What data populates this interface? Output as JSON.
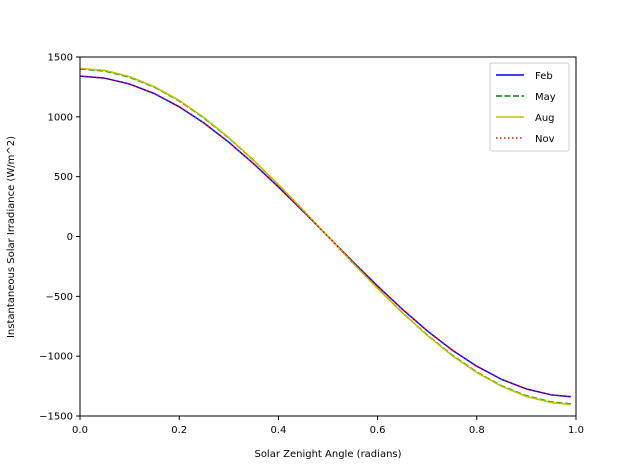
{
  "chart_data": {
    "type": "line",
    "title": "",
    "xlabel": "Solar Zenight Angle (radians)",
    "ylabel": "Instantaneous Solar Irradiance (W/m^2)",
    "xlim": [
      0.0,
      1.0
    ],
    "ylim": [
      -1500,
      1500
    ],
    "xticks": [
      0.0,
      0.2,
      0.4,
      0.6,
      0.8,
      1.0
    ],
    "xtick_labels": [
      "0.0",
      "0.2",
      "0.4",
      "0.6",
      "0.8",
      "1.0"
    ],
    "yticks": [
      -1500,
      -1000,
      -500,
      0,
      500,
      1000,
      1500
    ],
    "ytick_labels": [
      "−1500",
      "−1000",
      "−500",
      "0",
      "500",
      "1000",
      "1500"
    ],
    "grid": false,
    "legend_position": "top-right",
    "x": [
      0.0,
      0.05,
      0.1,
      0.15,
      0.2,
      0.25,
      0.3,
      0.35,
      0.4,
      0.45,
      0.5,
      0.55,
      0.6,
      0.65,
      0.7,
      0.75,
      0.8,
      0.85,
      0.9,
      0.95,
      0.99
    ],
    "series": [
      {
        "name": "Feb",
        "color": "#0000ff",
        "style": "solid",
        "values": [
          1340,
          1323,
          1274,
          1194,
          1084,
          948,
          788,
          608,
          414,
          210,
          0,
          -210,
          -414,
          -608,
          -788,
          -948,
          -1084,
          -1194,
          -1274,
          -1323,
          -1339
        ]
      },
      {
        "name": "May",
        "color": "#008000",
        "style": "dashed",
        "values": [
          1400,
          1383,
          1331,
          1248,
          1133,
          990,
          823,
          636,
          433,
          219,
          0,
          -219,
          -433,
          -636,
          -823,
          -990,
          -1133,
          -1248,
          -1331,
          -1383,
          -1399
        ]
      },
      {
        "name": "Aug",
        "color": "#bfbf00",
        "style": "solid",
        "values": [
          1405,
          1388,
          1336,
          1252,
          1137,
          994,
          826,
          638,
          434,
          220,
          0,
          -220,
          -434,
          -638,
          -826,
          -994,
          -1137,
          -1252,
          -1336,
          -1388,
          -1404
        ]
      },
      {
        "name": "Nov",
        "color": "#ff0000",
        "style": "dotted",
        "values": [
          1340,
          1323,
          1274,
          1194,
          1084,
          948,
          788,
          608,
          414,
          210,
          0,
          -210,
          -414,
          -608,
          -788,
          -948,
          -1084,
          -1194,
          -1274,
          -1323,
          -1339
        ]
      }
    ]
  }
}
